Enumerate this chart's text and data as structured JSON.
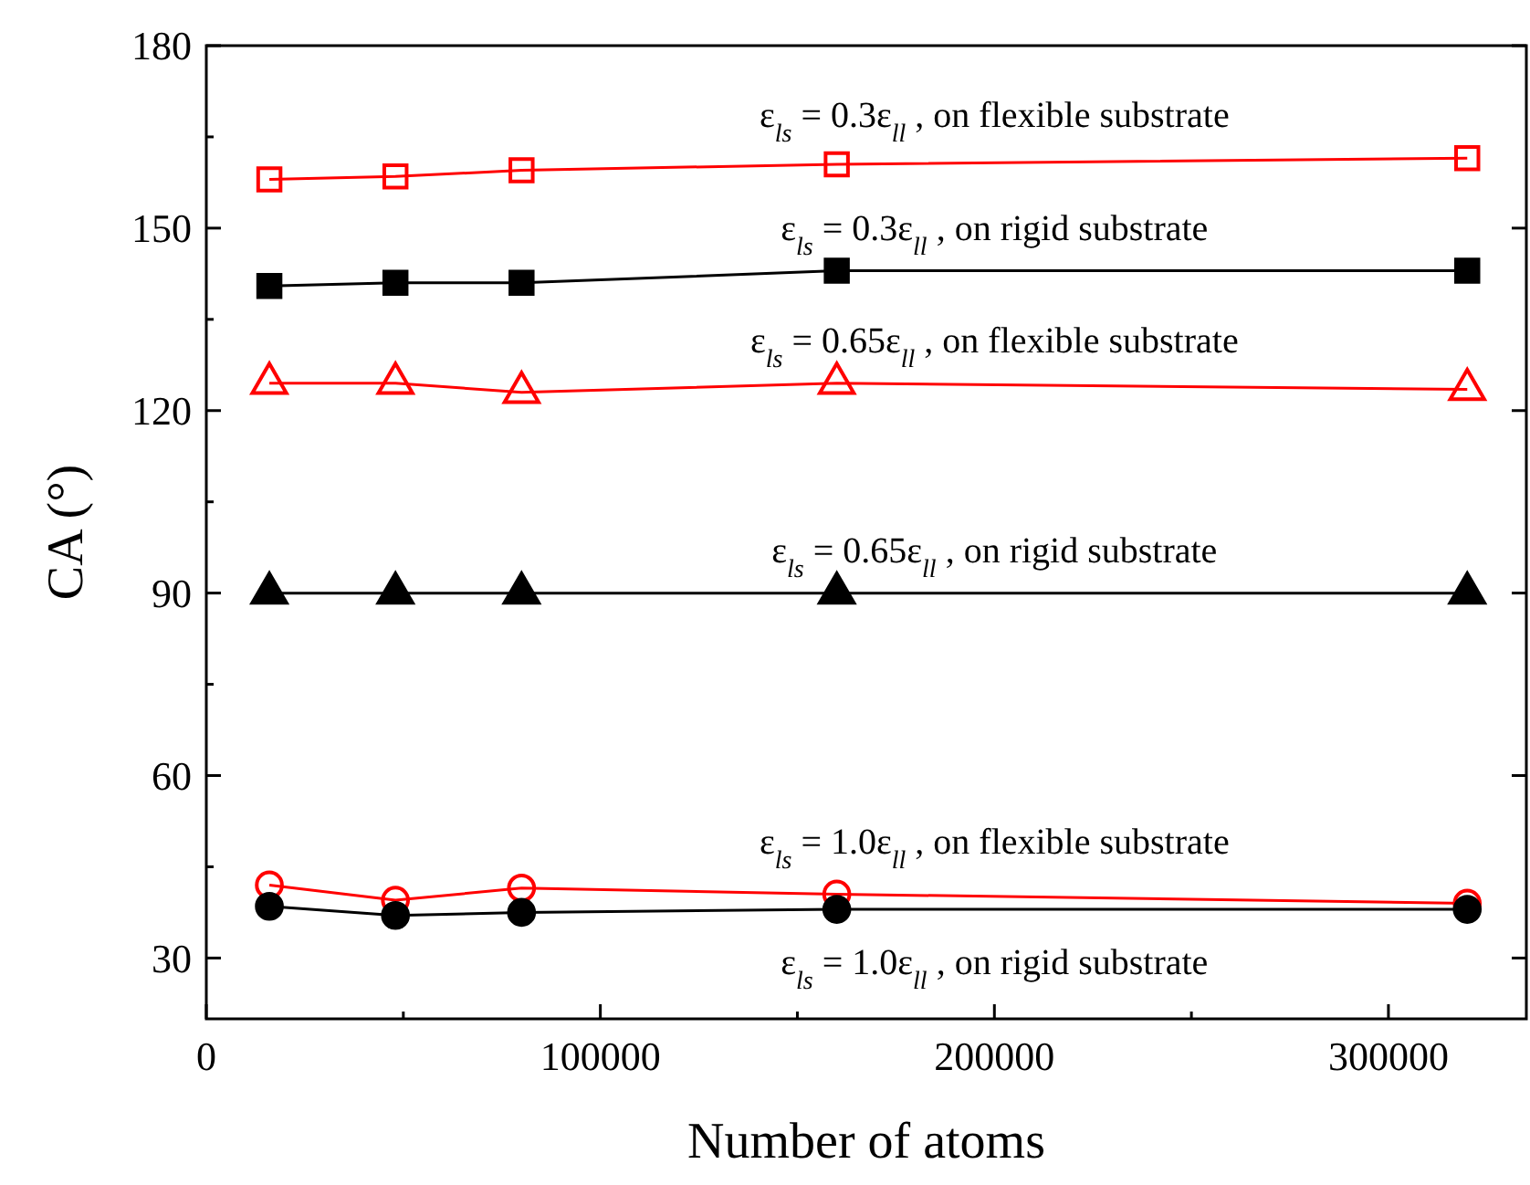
{
  "chart_data": {
    "type": "line",
    "xlabel": "Number of atoms",
    "ylabel": "CA (°)",
    "xlim": [
      0,
      335000
    ],
    "xticks": [
      0,
      100000,
      200000,
      300000
    ],
    "ylim": [
      20,
      180
    ],
    "yticks": [
      30,
      60,
      90,
      120,
      150,
      180
    ],
    "grid": false,
    "line_style": "solid",
    "x": [
      16000,
      48000,
      80000,
      160000,
      320000
    ],
    "series": [
      {
        "name": "ε$_{ls}$ = 0.3ε$_{ll}$ , on flexible substrate",
        "color": "#ff0000",
        "marker": "square",
        "values": [
          158,
          158.5,
          159.5,
          160.5,
          161.5
        ]
      },
      {
        "name": "ε$_{ls}$ = 0.3ε$_{ll}$ , on rigid substrate",
        "color": "#000000",
        "marker": "square",
        "values": [
          140.5,
          141,
          141,
          143,
          143
        ]
      },
      {
        "name": "ε$_{ls}$ = 0.65ε$_{ll}$ , on flexible substrate",
        "color": "#ff0000",
        "marker": "triangle",
        "values": [
          124.5,
          124.5,
          123,
          124.5,
          123.5
        ]
      },
      {
        "name": "ε$_{ls}$ = 0.65ε$_{ll}$ , on rigid substrate",
        "color": "#000000",
        "marker": "triangle",
        "values": [
          90,
          90,
          90,
          90,
          90
        ]
      },
      {
        "name": "ε$_{ls}$ = 1.0ε$_{ll}$ , on flexible substrate",
        "color": "#ff0000",
        "marker": "circle",
        "values": [
          42,
          39.5,
          41.5,
          40.5,
          39
        ]
      },
      {
        "name": "ε$_{ls}$ = 1.0ε$_{ll}$ , on rigid substrate",
        "color": "#000000",
        "marker": "circle",
        "values": [
          38.5,
          37,
          37.5,
          38,
          38
        ]
      }
    ]
  }
}
